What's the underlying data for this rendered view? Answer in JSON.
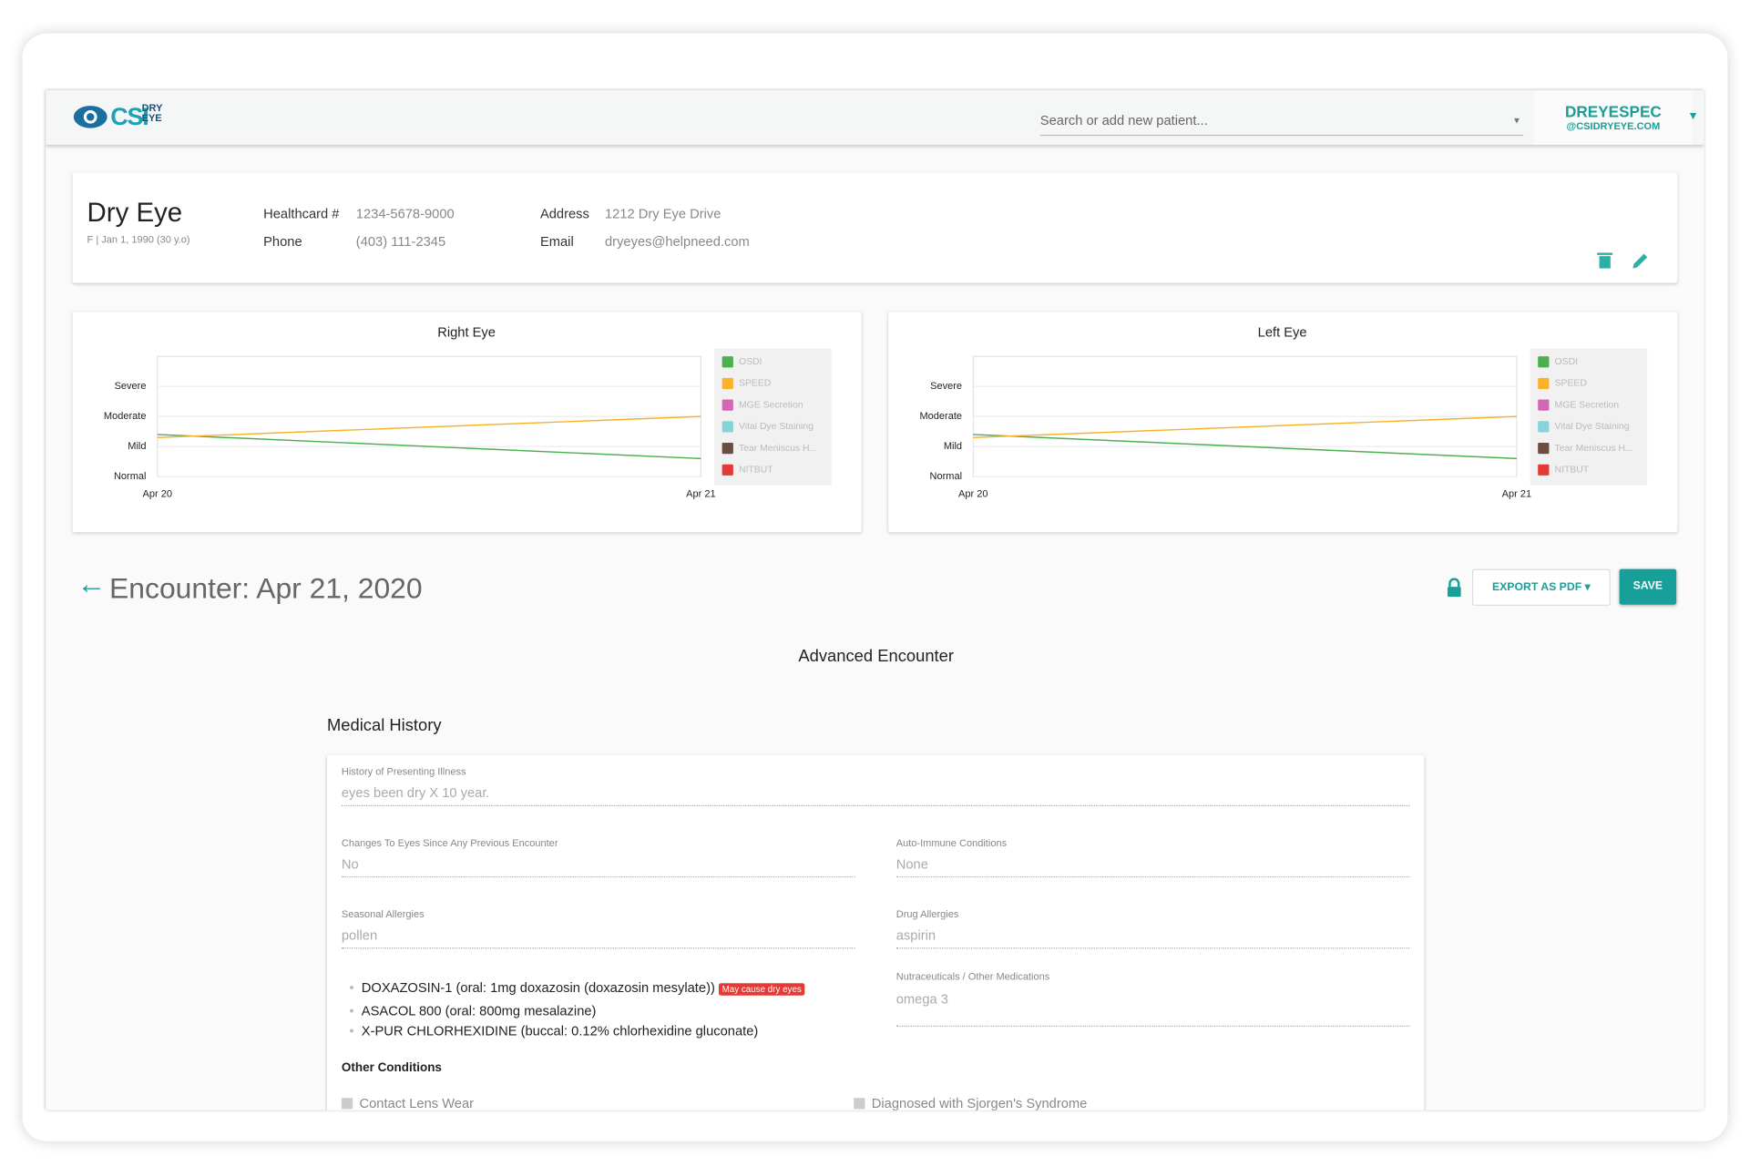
{
  "header": {
    "logo": "CSI",
    "logo_top": "DRY",
    "logo_bottom": "EYE",
    "search_placeholder": "Search or add new patient...",
    "user_name": "DREYESPEC",
    "user_email": "@CSIDRYEYE.COM"
  },
  "patient": {
    "name": "Dry Eye",
    "details": "F | Jan 1, 1990 (30 y.o)",
    "fields": [
      {
        "label": "Healthcard #",
        "value": "1234-5678-9000"
      },
      {
        "label": "Phone",
        "value": "(403) 111-2345"
      },
      {
        "label": "Address",
        "value": "1212 Dry Eye Drive"
      },
      {
        "label": "Email",
        "value": "dryeyes@helpneed.com"
      }
    ]
  },
  "chart_data": [
    {
      "type": "line",
      "title": "Right Eye",
      "categories": [
        "Apr 20",
        "Apr 21"
      ],
      "ylim": [
        0,
        4
      ],
      "yticks": [
        {
          "value": 0,
          "label": "Normal"
        },
        {
          "value": 1,
          "label": "Mild"
        },
        {
          "value": 2,
          "label": "Moderate"
        },
        {
          "value": 3,
          "label": "Severe"
        }
      ],
      "grid": true,
      "legend": "right",
      "series": [
        {
          "name": "OSDI",
          "color": "#4caf50",
          "values": [
            1.4,
            0.6
          ]
        },
        {
          "name": "SPEED",
          "color": "#f9b32a",
          "values": [
            1.3,
            2.0
          ]
        },
        {
          "name": "MGE Secretion",
          "color": "#d467b3",
          "values": [
            null,
            null
          ]
        },
        {
          "name": "Vital Dye Staining",
          "color": "#86d3da",
          "values": [
            null,
            null
          ]
        },
        {
          "name": "Tear Meniscus H...",
          "color": "#6d4c41",
          "values": [
            null,
            null
          ]
        },
        {
          "name": "NITBUT",
          "color": "#e53935",
          "values": [
            null,
            null
          ]
        }
      ]
    },
    {
      "type": "line",
      "title": "Left Eye",
      "categories": [
        "Apr 20",
        "Apr 21"
      ],
      "ylim": [
        0,
        4
      ],
      "yticks": [
        {
          "value": 0,
          "label": "Normal"
        },
        {
          "value": 1,
          "label": "Mild"
        },
        {
          "value": 2,
          "label": "Moderate"
        },
        {
          "value": 3,
          "label": "Severe"
        }
      ],
      "grid": true,
      "legend": "right",
      "series": [
        {
          "name": "OSDI",
          "color": "#4caf50",
          "values": [
            1.4,
            0.6
          ]
        },
        {
          "name": "SPEED",
          "color": "#f9b32a",
          "values": [
            1.3,
            2.0
          ]
        },
        {
          "name": "MGE Secretion",
          "color": "#d467b3",
          "values": [
            null,
            null
          ]
        },
        {
          "name": "Vital Dye Staining",
          "color": "#86d3da",
          "values": [
            null,
            null
          ]
        },
        {
          "name": "Tear Meniscus H...",
          "color": "#6d4c41",
          "values": [
            null,
            null
          ]
        },
        {
          "name": "NITBUT",
          "color": "#e53935",
          "values": [
            null,
            null
          ]
        }
      ]
    }
  ],
  "encounter": {
    "title": "Encounter: Apr 21, 2020",
    "export": "EXPORT AS PDF",
    "save": "SAVE",
    "subtitle": "Advanced Encounter",
    "section": "Medical History",
    "fields": [
      {
        "label": "History of Presenting Illness",
        "value": "eyes been dry X 10 year."
      },
      {
        "label": "Changes To Eyes Since Any Previous Encounter",
        "value": "No"
      },
      {
        "label": "Auto-Immune Conditions",
        "value": "None"
      },
      {
        "label": "Seasonal Allergies",
        "value": "pollen"
      },
      {
        "label": "Drug Allergies",
        "value": "aspirin"
      },
      {
        "label": "Nutraceuticals / Other Medications",
        "value": "omega 3"
      }
    ],
    "medications": [
      {
        "text": "DOXAZOSIN-1 (oral: 1mg doxazosin (doxazosin mesylate))",
        "warning": "May cause dry eyes"
      },
      {
        "text": "ASACOL 800 (oral: 800mg mesalazine)"
      },
      {
        "text": "X-PUR CHLORHEXIDINE (buccal: 0.12% chlorhexidine gluconate)"
      }
    ],
    "conditions_title": "Other Conditions",
    "conditions": [
      "Contact Lens Wear",
      "Diagnosed with Sjorgen's Syndrome"
    ]
  }
}
